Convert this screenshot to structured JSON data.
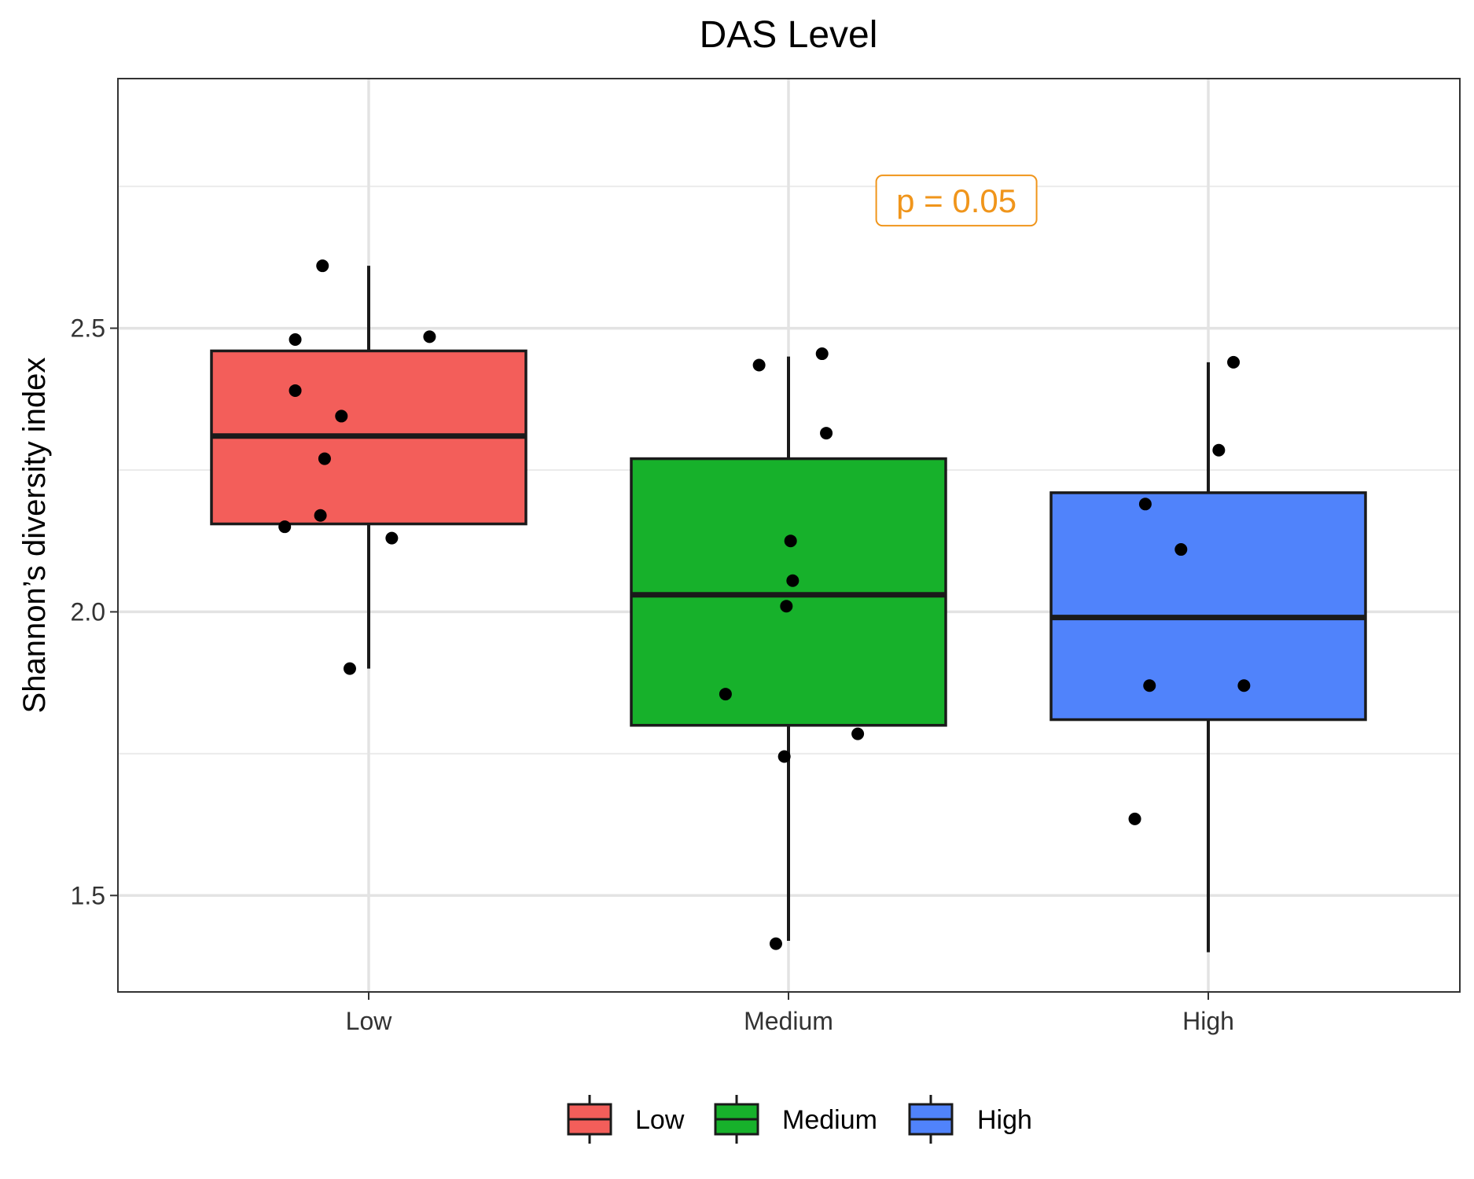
{
  "chart_data": {
    "type": "boxplot",
    "title": "DAS Level",
    "xlabel": "",
    "ylabel": "Shannon’s diversity index",
    "ylim": [
      1.33,
      2.94
    ],
    "yticks": [
      1.5,
      2.0,
      2.5
    ],
    "ytick_labels": [
      "1.5",
      "2.0",
      "2.5"
    ],
    "grid": true,
    "legend_position": "bottom",
    "categories": [
      "Low",
      "Medium",
      "High"
    ],
    "series": [
      {
        "name": "Low",
        "color": "#F35E5A",
        "whisker_low": 1.9,
        "q1": 2.155,
        "median": 2.31,
        "q3": 2.46,
        "whisker_high": 2.61,
        "points": [
          {
            "x_offset": -0.11,
            "y": 2.61
          },
          {
            "x_offset": -0.175,
            "y": 2.48
          },
          {
            "x_offset": 0.145,
            "y": 2.485
          },
          {
            "x_offset": -0.175,
            "y": 2.39
          },
          {
            "x_offset": -0.065,
            "y": 2.345
          },
          {
            "x_offset": -0.105,
            "y": 2.27
          },
          {
            "x_offset": -0.115,
            "y": 2.17
          },
          {
            "x_offset": -0.2,
            "y": 2.15
          },
          {
            "x_offset": 0.055,
            "y": 2.13
          },
          {
            "x_offset": -0.045,
            "y": 1.9
          }
        ]
      },
      {
        "name": "Medium",
        "color": "#17B12B",
        "whisker_low": 1.42,
        "q1": 1.8,
        "median": 2.03,
        "q3": 2.27,
        "whisker_high": 2.45,
        "points": [
          {
            "x_offset": 0.08,
            "y": 2.455
          },
          {
            "x_offset": -0.07,
            "y": 2.435
          },
          {
            "x_offset": 0.09,
            "y": 2.315
          },
          {
            "x_offset": 0.005,
            "y": 2.125
          },
          {
            "x_offset": 0.01,
            "y": 2.055
          },
          {
            "x_offset": -0.005,
            "y": 2.01
          },
          {
            "x_offset": -0.15,
            "y": 1.855
          },
          {
            "x_offset": 0.165,
            "y": 1.785
          },
          {
            "x_offset": -0.01,
            "y": 1.745
          },
          {
            "x_offset": -0.03,
            "y": 1.415
          }
        ]
      },
      {
        "name": "High",
        "color": "#5083FB",
        "whisker_low": 1.4,
        "q1": 1.81,
        "median": 1.99,
        "q3": 2.21,
        "whisker_high": 2.44,
        "points": [
          {
            "x_offset": 0.06,
            "y": 2.44
          },
          {
            "x_offset": 0.025,
            "y": 2.285
          },
          {
            "x_offset": -0.15,
            "y": 2.19
          },
          {
            "x_offset": -0.065,
            "y": 2.11
          },
          {
            "x_offset": -0.14,
            "y": 1.87
          },
          {
            "x_offset": 0.085,
            "y": 1.87
          },
          {
            "x_offset": -0.175,
            "y": 1.635
          }
        ]
      }
    ],
    "annotation": {
      "text": "p = 0.05",
      "x_category_position": 1.4,
      "y": 2.725,
      "color": "#F0951B"
    }
  }
}
